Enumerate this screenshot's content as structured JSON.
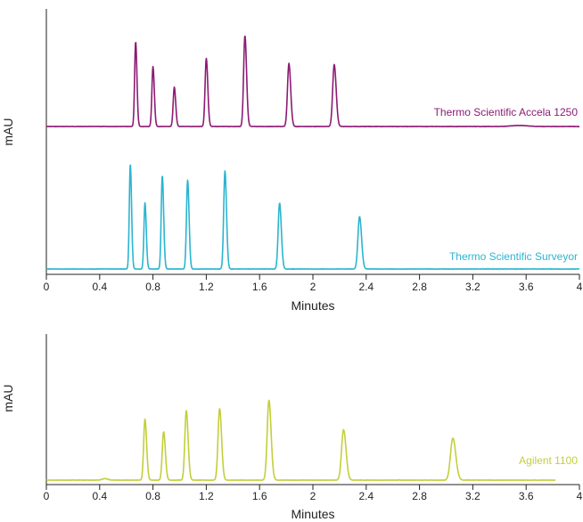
{
  "chart_data": [
    {
      "type": "line",
      "xlabel": "Minutes",
      "ylabel": "mAU",
      "xlim": [
        0,
        4
      ],
      "xticks": [
        "0",
        "0.4",
        "0.8",
        "1.2",
        "1.6",
        "2",
        "2.4",
        "2.8",
        "3.2",
        "3.6",
        "4"
      ],
      "series": [
        {
          "name": "Thermo Scientific Accela 1250",
          "color": "#8c1b74",
          "peaks": [
            {
              "x": 0.67,
              "height": 0.82
            },
            {
              "x": 0.8,
              "height": 0.58
            },
            {
              "x": 0.96,
              "height": 0.38
            },
            {
              "x": 1.2,
              "height": 0.66
            },
            {
              "x": 1.49,
              "height": 0.88
            },
            {
              "x": 1.82,
              "height": 0.61
            },
            {
              "x": 2.16,
              "height": 0.6
            }
          ]
        },
        {
          "name": "Thermo Scientific Surveyor",
          "color": "#2bb5cf",
          "peaks": [
            {
              "x": 0.63,
              "height": 0.92
            },
            {
              "x": 0.74,
              "height": 0.58
            },
            {
              "x": 0.87,
              "height": 0.82
            },
            {
              "x": 1.06,
              "height": 0.78
            },
            {
              "x": 1.34,
              "height": 0.86
            },
            {
              "x": 1.75,
              "height": 0.58
            },
            {
              "x": 2.35,
              "height": 0.46
            }
          ]
        }
      ]
    },
    {
      "type": "line",
      "xlabel": "Minutes",
      "ylabel": "mAU",
      "xlim": [
        0,
        4
      ],
      "xticks": [
        "0",
        "0.4",
        "0.8",
        "1.2",
        "1.6",
        "2",
        "2.4",
        "2.8",
        "3.2",
        "3.6",
        "4"
      ],
      "series": [
        {
          "name": "Agilent 1100",
          "color": "#c3cf3a",
          "peaks": [
            {
              "x": 0.74,
              "height": 0.58
            },
            {
              "x": 0.88,
              "height": 0.46
            },
            {
              "x": 1.05,
              "height": 0.66
            },
            {
              "x": 1.3,
              "height": 0.68
            },
            {
              "x": 1.67,
              "height": 0.76
            },
            {
              "x": 2.23,
              "height": 0.48
            },
            {
              "x": 3.05,
              "height": 0.4
            }
          ]
        }
      ]
    }
  ]
}
